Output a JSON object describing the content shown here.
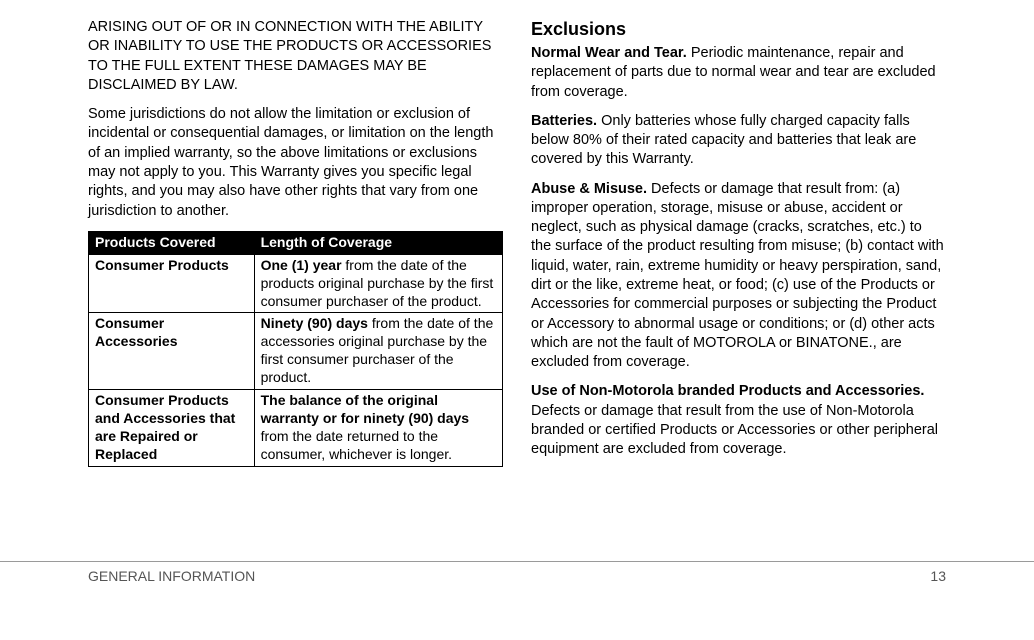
{
  "left": {
    "capsPara": "ARISING OUT OF OR IN CONNECTION WITH THE ABILITY OR INABILITY TO USE THE PRODUCTS OR ACCESSORIES TO THE FULL EXTENT THESE DAMAGES MAY BE DISCLAIMED BY LAW.",
    "jurisPara": "Some jurisdictions do not allow the limitation or exclusion of incidental or consequential damages, or limitation on the length of an implied warranty, so the above limitations or exclusions may not apply to you. This Warranty gives you specific legal rights, and you may also have other rights that vary from one jurisdiction to another.",
    "table": {
      "colHeaders": [
        "Products Covered",
        "Length of Coverage"
      ],
      "rows": [
        {
          "product": "Consumer Products",
          "lenBold": "One (1) year",
          "lenRest": " from the date of the products original purchase by the first consumer purchaser of the product."
        },
        {
          "product": "Consumer Accessories",
          "lenBold": "Ninety (90) days",
          "lenRest": " from the date of the accessories original purchase by the first consumer purchaser of the product."
        },
        {
          "product": "Consumer Products and Accessories that are Repaired or Replaced",
          "lenBold": "The balance of the original warranty or for ninety (90) days",
          "lenRest": " from the date returned to the consumer, whichever is longer."
        }
      ]
    }
  },
  "right": {
    "heading": "Exclusions",
    "wear": {
      "label": "Normal Wear and Tear.",
      "text": " Periodic maintenance, repair and replacement of parts due to normal wear and tear are excluded from coverage."
    },
    "batteries": {
      "label": "Batteries.",
      "text": " Only batteries whose fully charged capacity falls below 80% of their rated capacity and batteries that leak are covered by this Warranty."
    },
    "abuse": {
      "label": "Abuse & Misuse.",
      "text": " Defects or damage that result from: (a) improper operation, storage, misuse or abuse, accident or neglect, such as physical damage (cracks, scratches, etc.) to the surface of the product resulting from misuse; (b) contact with liquid, water, rain, extreme humidity or heavy perspiration, sand, dirt or the like, extreme heat, or food; (c) use of the Products or Accessories for commercial purposes or subjecting the Product or Accessory to abnormal usage or conditions; or (d) other acts which are not the fault of MOTOROLA or BINATONE., are excluded from coverage."
    },
    "nonmoto": {
      "label": "Use of Non-Motorola branded Products and Accessories.",
      "text": " Defects or damage that result from the use of Non-Motorola branded or certified Products or Accessories or other peripheral equipment are excluded from coverage."
    }
  },
  "footer": {
    "section": "GENERAL INFORMATION",
    "page": "13"
  },
  "style": {
    "pageWidth": 1034,
    "pageHeight": 640,
    "bodyFontSize": 14.5,
    "tableFontSize": 14,
    "headingFontSize": 18,
    "textColor": "#000000",
    "footerColor": "#555555",
    "ruleColor": "#9a9a9a",
    "tableHeaderBg": "#000000",
    "tableHeaderColor": "#ffffff",
    "tableBorderColor": "#000000",
    "background": "#ffffff"
  }
}
